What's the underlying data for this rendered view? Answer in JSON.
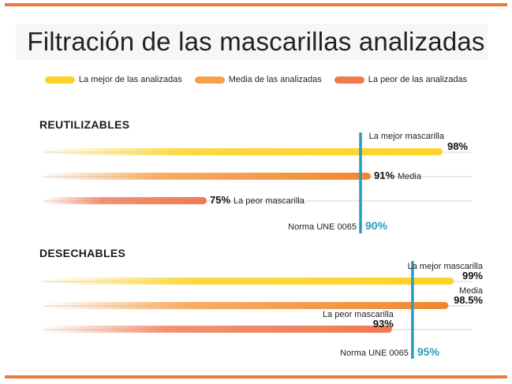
{
  "title": "Filtración de las mascarillas analizadas",
  "legend": {
    "best": "La mejor de las analizadas",
    "mid": "Media de las analizadas",
    "worst": "La peor de las analizadas"
  },
  "colors": {
    "best": "#fcd325",
    "mid": "#f6a04a",
    "worst": "#ef7a52",
    "norm_line": "#2a9bb8",
    "rule": "#f07a3a"
  },
  "chart_data": [
    {
      "type": "bar",
      "title": "REUTILIZABLES",
      "categories": [
        "La mejor mascarilla",
        "Media",
        "La peor mascarilla"
      ],
      "values": [
        98,
        91,
        75
      ],
      "value_labels": [
        "98%",
        "91%",
        "75%"
      ],
      "reference_line": {
        "label": "Norma UNE 0065",
        "value": 90,
        "value_label": "90%"
      }
    },
    {
      "type": "bar",
      "title": "DESECHABLES",
      "categories": [
        "La mejor mascarilla",
        "Media",
        "La peor mascarilla"
      ],
      "values": [
        99,
        98.5,
        93
      ],
      "value_labels": [
        "99%",
        "98.5%",
        "93%"
      ],
      "reference_line": {
        "label": "Norma UNE 0065",
        "value": 95,
        "value_label": "95%"
      }
    }
  ]
}
